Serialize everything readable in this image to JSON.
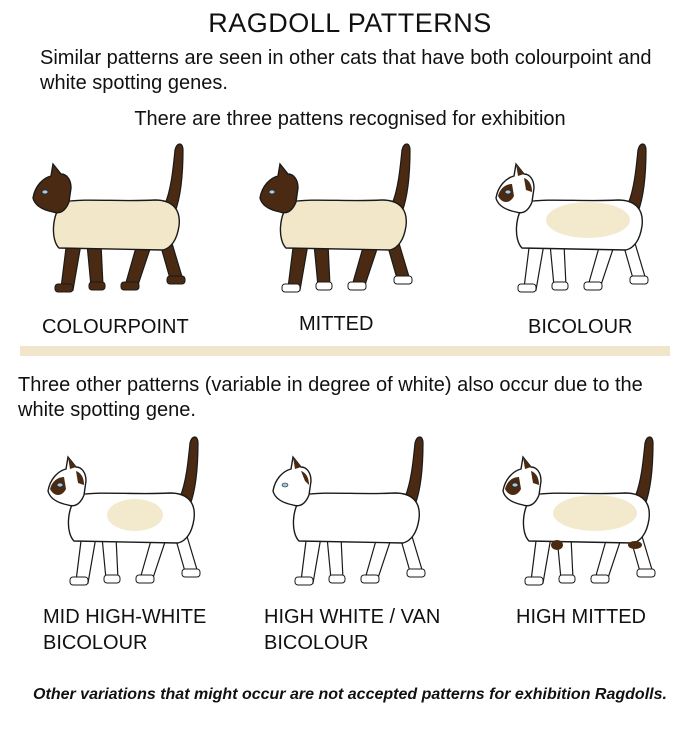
{
  "title": "RAGDOLL PATTERNS",
  "intro": "Similar patterns are seen in other cats that have both colourpoint and white spotting genes.",
  "subhead": "There are three pattens recognised for exhibition",
  "exhibition_patterns": [
    {
      "label": "COLOURPOINT",
      "icon": "colourpoint-cat-icon"
    },
    {
      "label": "MITTED",
      "icon": "mitted-cat-icon"
    },
    {
      "label": "BICOLOUR",
      "icon": "bicolour-cat-icon"
    }
  ],
  "other_intro": "Three other patterns (variable in degree of white) also occur due to the white spotting gene.",
  "other_patterns": [
    {
      "label_line1": "MID HIGH-WHITE",
      "label_line2": "BICOLOUR",
      "icon": "mid-high-white-bicolour-cat-icon"
    },
    {
      "label_line1": "HIGH WHITE / VAN",
      "label_line2": "BICOLOUR",
      "icon": "high-white-van-bicolour-cat-icon"
    },
    {
      "label_line1": "HIGH MITTED",
      "label_line2": "",
      "icon": "high-mitted-cat-icon"
    }
  ],
  "footer": "Other variations that might occur are not accepted patterns for exhibition Ragdolls.",
  "colors": {
    "cream": "#f2e8c9",
    "seal": "#4a2a12",
    "outline": "#1a1a1a",
    "divider": "#f1e6cc"
  }
}
